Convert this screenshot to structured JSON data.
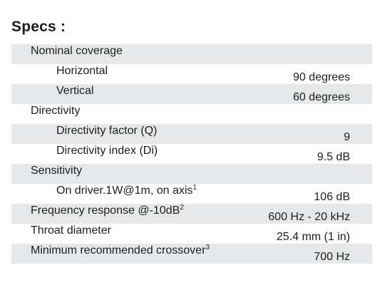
{
  "title": "Specs :",
  "rows": [
    {
      "label": "Nominal coverage",
      "value": "",
      "sup": "",
      "indent": false,
      "shaded": true
    },
    {
      "label": "Horizontal",
      "value": "90 degrees",
      "sup": "",
      "indent": true,
      "shaded": false
    },
    {
      "label": "Vertical",
      "value": "60 degrees",
      "sup": "",
      "indent": true,
      "shaded": true
    },
    {
      "label": "Directivity",
      "value": "",
      "sup": "",
      "indent": false,
      "shaded": false
    },
    {
      "label": "Directivity factor (Q)",
      "value": "9",
      "sup": "",
      "indent": true,
      "shaded": true
    },
    {
      "label": "Directivity index (Di)",
      "value": "9.5 dB",
      "sup": "",
      "indent": true,
      "shaded": false
    },
    {
      "label": "Sensitivity",
      "value": "",
      "sup": "",
      "indent": false,
      "shaded": true
    },
    {
      "label": "On driver.1W@1m, on axis",
      "value": "106 dB",
      "sup": "1",
      "indent": true,
      "shaded": false
    },
    {
      "label": "Frequency response @-10dB",
      "value": "600 Hz - 20 kHz",
      "sup": "2",
      "indent": false,
      "shaded": true
    },
    {
      "label": "Throat diameter",
      "value": "25.4 mm (1 in)",
      "sup": "",
      "indent": false,
      "shaded": false
    },
    {
      "label": "Minimum recommended crossover",
      "value": "700 Hz",
      "sup": "3",
      "indent": false,
      "shaded": true
    }
  ]
}
